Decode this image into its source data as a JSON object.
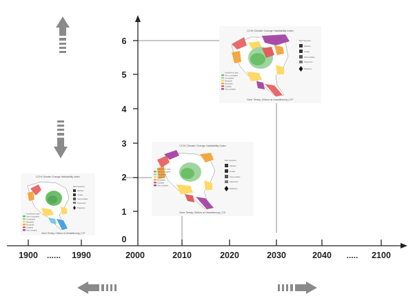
{
  "timeline": {
    "x_ticks": [
      "1900",
      "1990",
      "2000",
      "2010",
      "2020",
      "2030",
      "2040",
      "2100"
    ],
    "gap_left": "......",
    "gap_right": ".....",
    "y_ticks": [
      "0",
      "1",
      "2",
      "3",
      "4",
      "5",
      "6"
    ]
  },
  "maps": [
    {
      "title": "CCHI Climate Change Habitability Index",
      "caption": "Gene Tiersky, Gribkov at Gestaltinnung | 2.5°",
      "legend": [
        "Insufficient data",
        "Very unsuitable",
        "Unsuitable",
        "Marginal",
        "Moderate",
        "Suitable",
        "Very suitable"
      ],
      "birds_title": "Bird Species",
      "birds": [
        "Warbler",
        "Jungle",
        "Intermediate",
        "Passerine",
        "Migratory"
      ]
    },
    {
      "title": "CCHI Climate Change Habitability Index",
      "caption": "Gene Tiersky, Gribkov at Gestaltinnung | 2.5°",
      "legend": [
        "Insufficient data",
        "Very unsuitable",
        "Unsuitable",
        "Marginal",
        "Moderate",
        "Suitable",
        "Very suitable"
      ],
      "birds_title": "Bird Species",
      "birds": [
        "Warbler",
        "Jungle",
        "Intermediate",
        "Passerine",
        "Migratory"
      ]
    },
    {
      "title": "CCHI Climate Change Habitability Index",
      "caption": "Gene Tiersky, Gribkov at Gestaltinnung | 2.5°",
      "legend": [
        "Insufficient data",
        "Very unsuitable",
        "Unsuitable",
        "Marginal",
        "Moderate",
        "Suitable",
        "Very suitable"
      ],
      "birds_title": "Bird Species",
      "birds": [
        "Warbler",
        "Jungle",
        "Intermediate",
        "Passerine",
        "Migratory"
      ]
    }
  ],
  "colors": {
    "axis": "#222222",
    "arrow": "#8a8a8a",
    "connector": "#8c8c8c",
    "legend_swatches": [
      "#eeeeee",
      "#6dbf67",
      "#9fd6a0",
      "#ffd966",
      "#f4a742",
      "#e06060",
      "#a94ca9"
    ]
  },
  "icons": {
    "up": "arrow-up-icon",
    "down": "arrow-down-icon",
    "left": "arrow-left-icon",
    "right": "arrow-right-icon"
  }
}
